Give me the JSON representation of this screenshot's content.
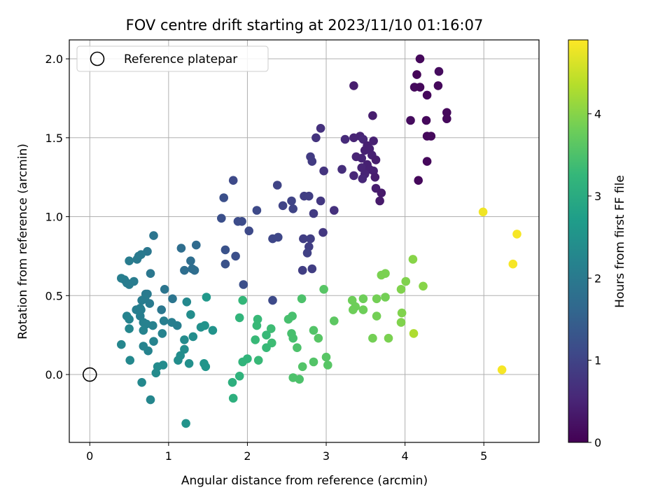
{
  "chart_data": {
    "type": "scatter",
    "title": "FOV centre drift starting at 2023/11/10 01:16:07",
    "xlabel": "Angular distance from reference (arcmin)",
    "ylabel": "Rotation from reference (arcmin)",
    "xlim": [
      -0.26,
      5.7
    ],
    "ylim": [
      -0.43,
      2.12
    ],
    "xticks": [
      0,
      1,
      2,
      3,
      4,
      5
    ],
    "yticks": [
      0.0,
      0.5,
      1.0,
      1.5,
      2.0
    ],
    "xtick_labels": [
      "0",
      "1",
      "2",
      "3",
      "4",
      "5"
    ],
    "ytick_labels": [
      "0.0",
      "0.5",
      "1.0",
      "1.5",
      "2.0"
    ],
    "grid": true,
    "legend": {
      "placement": "upper-left",
      "entries": [
        {
          "label": "Reference platepar",
          "marker": "open-circle"
        }
      ]
    },
    "reference_point": {
      "x": 0.0,
      "y": 0.0
    },
    "colorbar": {
      "label": "Hours from first FF file",
      "colormap": "viridis",
      "range": [
        0,
        4.9
      ],
      "ticks": [
        0,
        1,
        2,
        3,
        4
      ],
      "tick_labels": [
        "0",
        "1",
        "2",
        "3",
        "4"
      ]
    },
    "colormap_stops": [
      "#440154",
      "#482878",
      "#3e4989",
      "#31688e",
      "#26828e",
      "#1f9e89",
      "#35b779",
      "#6ece58",
      "#b5de2b",
      "#fde725"
    ],
    "points": [
      {
        "x": 4.19,
        "y": 2.0,
        "h": 0.1
      },
      {
        "x": 4.43,
        "y": 1.92,
        "h": 0.15
      },
      {
        "x": 4.15,
        "y": 1.9,
        "h": 0.05
      },
      {
        "x": 4.12,
        "y": 1.82,
        "h": 0.12
      },
      {
        "x": 4.42,
        "y": 1.83,
        "h": 0.1
      },
      {
        "x": 4.19,
        "y": 1.82,
        "h": 0.1
      },
      {
        "x": 4.28,
        "y": 1.77,
        "h": 0.1
      },
      {
        "x": 3.35,
        "y": 1.83,
        "h": 0.4
      },
      {
        "x": 4.53,
        "y": 1.66,
        "h": 0.1
      },
      {
        "x": 4.07,
        "y": 1.61,
        "h": 0.15
      },
      {
        "x": 4.27,
        "y": 1.61,
        "h": 0.1
      },
      {
        "x": 4.53,
        "y": 1.62,
        "h": 0.1
      },
      {
        "x": 3.59,
        "y": 1.64,
        "h": 0.4
      },
      {
        "x": 2.93,
        "y": 1.56,
        "h": 0.7
      },
      {
        "x": 4.28,
        "y": 1.51,
        "h": 0.1
      },
      {
        "x": 4.33,
        "y": 1.51,
        "h": 0.12
      },
      {
        "x": 4.28,
        "y": 1.35,
        "h": 0.1
      },
      {
        "x": 4.17,
        "y": 1.23,
        "h": 0.1
      },
      {
        "x": 2.87,
        "y": 1.5,
        "h": 0.75
      },
      {
        "x": 3.24,
        "y": 1.49,
        "h": 0.6
      },
      {
        "x": 3.35,
        "y": 1.5,
        "h": 0.5
      },
      {
        "x": 3.43,
        "y": 1.51,
        "h": 0.5
      },
      {
        "x": 3.47,
        "y": 1.49,
        "h": 0.55
      },
      {
        "x": 3.52,
        "y": 1.45,
        "h": 0.45
      },
      {
        "x": 3.6,
        "y": 1.48,
        "h": 0.45
      },
      {
        "x": 3.49,
        "y": 1.42,
        "h": 0.45
      },
      {
        "x": 3.55,
        "y": 1.43,
        "h": 0.45
      },
      {
        "x": 3.38,
        "y": 1.38,
        "h": 0.5
      },
      {
        "x": 3.45,
        "y": 1.37,
        "h": 0.5
      },
      {
        "x": 3.58,
        "y": 1.39,
        "h": 0.45
      },
      {
        "x": 3.63,
        "y": 1.36,
        "h": 0.4
      },
      {
        "x": 3.52,
        "y": 1.33,
        "h": 0.45
      },
      {
        "x": 3.45,
        "y": 1.31,
        "h": 0.5
      },
      {
        "x": 3.55,
        "y": 1.3,
        "h": 0.45
      },
      {
        "x": 3.49,
        "y": 1.27,
        "h": 0.5
      },
      {
        "x": 3.6,
        "y": 1.29,
        "h": 0.45
      },
      {
        "x": 3.35,
        "y": 1.26,
        "h": 0.55
      },
      {
        "x": 3.46,
        "y": 1.24,
        "h": 0.55
      },
      {
        "x": 3.62,
        "y": 1.25,
        "h": 0.4
      },
      {
        "x": 3.63,
        "y": 1.18,
        "h": 0.4
      },
      {
        "x": 3.7,
        "y": 1.15,
        "h": 0.35
      },
      {
        "x": 3.68,
        "y": 1.1,
        "h": 0.35
      },
      {
        "x": 3.2,
        "y": 1.3,
        "h": 0.65
      },
      {
        "x": 2.97,
        "y": 1.29,
        "h": 0.75
      },
      {
        "x": 2.8,
        "y": 1.38,
        "h": 0.85
      },
      {
        "x": 2.82,
        "y": 1.35,
        "h": 0.85
      },
      {
        "x": 1.82,
        "y": 1.23,
        "h": 1.1
      },
      {
        "x": 2.38,
        "y": 1.2,
        "h": 1.0
      },
      {
        "x": 1.7,
        "y": 1.12,
        "h": 1.2
      },
      {
        "x": 2.72,
        "y": 1.13,
        "h": 0.9
      },
      {
        "x": 2.78,
        "y": 1.13,
        "h": 0.9
      },
      {
        "x": 2.56,
        "y": 1.1,
        "h": 1.0
      },
      {
        "x": 2.93,
        "y": 1.1,
        "h": 0.8
      },
      {
        "x": 2.45,
        "y": 1.07,
        "h": 1.0
      },
      {
        "x": 2.58,
        "y": 1.05,
        "h": 1.0
      },
      {
        "x": 2.12,
        "y": 1.04,
        "h": 1.1
      },
      {
        "x": 2.84,
        "y": 1.02,
        "h": 0.85
      },
      {
        "x": 3.1,
        "y": 1.04,
        "h": 0.7
      },
      {
        "x": 1.67,
        "y": 0.99,
        "h": 1.2
      },
      {
        "x": 1.88,
        "y": 0.97,
        "h": 1.15
      },
      {
        "x": 1.93,
        "y": 0.97,
        "h": 1.15
      },
      {
        "x": 2.02,
        "y": 0.91,
        "h": 1.1
      },
      {
        "x": 2.96,
        "y": 0.9,
        "h": 0.8
      },
      {
        "x": 2.32,
        "y": 0.86,
        "h": 1.05
      },
      {
        "x": 2.39,
        "y": 0.87,
        "h": 1.05
      },
      {
        "x": 2.71,
        "y": 0.86,
        "h": 0.9
      },
      {
        "x": 2.8,
        "y": 0.86,
        "h": 0.9
      },
      {
        "x": 2.78,
        "y": 0.81,
        "h": 0.9
      },
      {
        "x": 2.76,
        "y": 0.77,
        "h": 0.95
      },
      {
        "x": 1.72,
        "y": 0.79,
        "h": 1.25
      },
      {
        "x": 1.85,
        "y": 0.75,
        "h": 1.2
      },
      {
        "x": 1.72,
        "y": 0.7,
        "h": 1.25
      },
      {
        "x": 2.7,
        "y": 0.66,
        "h": 0.9
      },
      {
        "x": 2.82,
        "y": 0.67,
        "h": 0.9
      },
      {
        "x": 1.95,
        "y": 0.57,
        "h": 1.2
      },
      {
        "x": 2.32,
        "y": 0.47,
        "h": 1.1
      },
      {
        "x": 0.81,
        "y": 0.88,
        "h": 1.9
      },
      {
        "x": 1.35,
        "y": 0.82,
        "h": 1.7
      },
      {
        "x": 1.16,
        "y": 0.8,
        "h": 1.75
      },
      {
        "x": 0.73,
        "y": 0.78,
        "h": 1.95
      },
      {
        "x": 0.62,
        "y": 0.75,
        "h": 2.0
      },
      {
        "x": 0.65,
        "y": 0.76,
        "h": 2.0
      },
      {
        "x": 0.5,
        "y": 0.72,
        "h": 2.05
      },
      {
        "x": 0.6,
        "y": 0.73,
        "h": 2.0
      },
      {
        "x": 1.28,
        "y": 0.72,
        "h": 1.75
      },
      {
        "x": 1.2,
        "y": 0.66,
        "h": 1.75
      },
      {
        "x": 1.3,
        "y": 0.67,
        "h": 1.75
      },
      {
        "x": 1.33,
        "y": 0.66,
        "h": 1.75
      },
      {
        "x": 0.77,
        "y": 0.64,
        "h": 1.95
      },
      {
        "x": 0.4,
        "y": 0.61,
        "h": 2.1
      },
      {
        "x": 0.44,
        "y": 0.6,
        "h": 2.1
      },
      {
        "x": 0.47,
        "y": 0.58,
        "h": 2.05
      },
      {
        "x": 0.56,
        "y": 0.59,
        "h": 2.05
      },
      {
        "x": 0.5,
        "y": 0.57,
        "h": 2.05
      },
      {
        "x": 0.71,
        "y": 0.51,
        "h": 2.0
      },
      {
        "x": 0.73,
        "y": 0.51,
        "h": 2.0
      },
      {
        "x": 0.95,
        "y": 0.54,
        "h": 1.9
      },
      {
        "x": 0.66,
        "y": 0.47,
        "h": 2.05
      },
      {
        "x": 0.7,
        "y": 0.48,
        "h": 2.05
      },
      {
        "x": 0.76,
        "y": 0.45,
        "h": 2.0
      },
      {
        "x": 1.05,
        "y": 0.48,
        "h": 1.9
      },
      {
        "x": 0.59,
        "y": 0.41,
        "h": 2.1
      },
      {
        "x": 0.64,
        "y": 0.42,
        "h": 2.1
      },
      {
        "x": 0.65,
        "y": 0.41,
        "h": 2.1
      },
      {
        "x": 0.91,
        "y": 0.41,
        "h": 1.95
      },
      {
        "x": 0.47,
        "y": 0.37,
        "h": 2.2
      },
      {
        "x": 0.5,
        "y": 0.35,
        "h": 2.2
      },
      {
        "x": 0.64,
        "y": 0.37,
        "h": 2.1
      },
      {
        "x": 0.68,
        "y": 0.33,
        "h": 2.15
      },
      {
        "x": 0.72,
        "y": 0.32,
        "h": 2.15
      },
      {
        "x": 0.8,
        "y": 0.31,
        "h": 2.15
      },
      {
        "x": 0.94,
        "y": 0.34,
        "h": 2.1
      },
      {
        "x": 1.04,
        "y": 0.33,
        "h": 2.1
      },
      {
        "x": 1.11,
        "y": 0.31,
        "h": 2.1
      },
      {
        "x": 0.5,
        "y": 0.29,
        "h": 2.25
      },
      {
        "x": 0.68,
        "y": 0.28,
        "h": 2.2
      },
      {
        "x": 0.92,
        "y": 0.26,
        "h": 2.2
      },
      {
        "x": 1.23,
        "y": 0.46,
        "h": 2.3
      },
      {
        "x": 1.28,
        "y": 0.38,
        "h": 2.4
      },
      {
        "x": 1.48,
        "y": 0.49,
        "h": 2.6
      },
      {
        "x": 1.41,
        "y": 0.3,
        "h": 2.45
      },
      {
        "x": 1.46,
        "y": 0.31,
        "h": 2.5
      },
      {
        "x": 1.56,
        "y": 0.28,
        "h": 2.5
      },
      {
        "x": 1.2,
        "y": 0.22,
        "h": 2.35
      },
      {
        "x": 1.31,
        "y": 0.24,
        "h": 2.4
      },
      {
        "x": 0.4,
        "y": 0.19,
        "h": 2.25
      },
      {
        "x": 0.68,
        "y": 0.18,
        "h": 2.2
      },
      {
        "x": 0.74,
        "y": 0.15,
        "h": 2.2
      },
      {
        "x": 0.81,
        "y": 0.21,
        "h": 2.2
      },
      {
        "x": 1.2,
        "y": 0.16,
        "h": 2.4
      },
      {
        "x": 1.15,
        "y": 0.12,
        "h": 2.4
      },
      {
        "x": 1.12,
        "y": 0.09,
        "h": 2.4
      },
      {
        "x": 0.51,
        "y": 0.09,
        "h": 2.3
      },
      {
        "x": 1.26,
        "y": 0.07,
        "h": 2.45
      },
      {
        "x": 1.45,
        "y": 0.07,
        "h": 2.55
      },
      {
        "x": 1.47,
        "y": 0.05,
        "h": 2.55
      },
      {
        "x": 0.86,
        "y": 0.05,
        "h": 2.35
      },
      {
        "x": 0.93,
        "y": 0.06,
        "h": 2.35
      },
      {
        "x": 0.84,
        "y": 0.01,
        "h": 2.35
      },
      {
        "x": 0.66,
        "y": -0.05,
        "h": 2.3
      },
      {
        "x": 0.77,
        "y": -0.16,
        "h": 2.25
      },
      {
        "x": 1.22,
        "y": -0.31,
        "h": 2.5
      },
      {
        "x": 1.94,
        "y": 0.47,
        "h": 3.25
      },
      {
        "x": 1.9,
        "y": 0.36,
        "h": 3.2
      },
      {
        "x": 2.13,
        "y": 0.35,
        "h": 3.3
      },
      {
        "x": 2.12,
        "y": 0.31,
        "h": 3.3
      },
      {
        "x": 2.3,
        "y": 0.29,
        "h": 3.35
      },
      {
        "x": 2.24,
        "y": 0.25,
        "h": 3.3
      },
      {
        "x": 2.31,
        "y": 0.2,
        "h": 3.35
      },
      {
        "x": 2.1,
        "y": 0.22,
        "h": 3.3
      },
      {
        "x": 2.24,
        "y": 0.17,
        "h": 3.3
      },
      {
        "x": 2.0,
        "y": 0.1,
        "h": 3.2
      },
      {
        "x": 1.94,
        "y": 0.08,
        "h": 3.2
      },
      {
        "x": 2.14,
        "y": 0.09,
        "h": 3.3
      },
      {
        "x": 1.81,
        "y": -0.05,
        "h": 3.1
      },
      {
        "x": 1.9,
        "y": -0.01,
        "h": 3.15
      },
      {
        "x": 1.82,
        "y": -0.15,
        "h": 3.1
      },
      {
        "x": 2.69,
        "y": 0.48,
        "h": 3.5
      },
      {
        "x": 2.52,
        "y": 0.35,
        "h": 3.45
      },
      {
        "x": 2.57,
        "y": 0.37,
        "h": 3.45
      },
      {
        "x": 2.56,
        "y": 0.26,
        "h": 3.45
      },
      {
        "x": 2.58,
        "y": 0.23,
        "h": 3.45
      },
      {
        "x": 2.63,
        "y": 0.17,
        "h": 3.5
      },
      {
        "x": 2.84,
        "y": 0.28,
        "h": 3.55
      },
      {
        "x": 2.9,
        "y": 0.23,
        "h": 3.6
      },
      {
        "x": 2.97,
        "y": 0.54,
        "h": 3.6
      },
      {
        "x": 3.1,
        "y": 0.34,
        "h": 3.65
      },
      {
        "x": 2.84,
        "y": 0.08,
        "h": 3.55
      },
      {
        "x": 2.7,
        "y": 0.05,
        "h": 3.55
      },
      {
        "x": 3.0,
        "y": 0.11,
        "h": 3.6
      },
      {
        "x": 3.02,
        "y": 0.06,
        "h": 3.6
      },
      {
        "x": 2.58,
        "y": -0.02,
        "h": 3.5
      },
      {
        "x": 2.66,
        "y": -0.03,
        "h": 3.5
      },
      {
        "x": 3.33,
        "y": 0.47,
        "h": 3.8
      },
      {
        "x": 3.47,
        "y": 0.48,
        "h": 3.8
      },
      {
        "x": 3.37,
        "y": 0.43,
        "h": 3.8
      },
      {
        "x": 3.34,
        "y": 0.41,
        "h": 3.8
      },
      {
        "x": 3.47,
        "y": 0.41,
        "h": 3.8
      },
      {
        "x": 3.64,
        "y": 0.48,
        "h": 3.85
      },
      {
        "x": 3.75,
        "y": 0.49,
        "h": 3.85
      },
      {
        "x": 3.7,
        "y": 0.63,
        "h": 3.9
      },
      {
        "x": 3.75,
        "y": 0.64,
        "h": 3.9
      },
      {
        "x": 3.64,
        "y": 0.37,
        "h": 3.85
      },
      {
        "x": 3.59,
        "y": 0.23,
        "h": 3.85
      },
      {
        "x": 3.79,
        "y": 0.23,
        "h": 3.9
      },
      {
        "x": 3.95,
        "y": 0.54,
        "h": 3.95
      },
      {
        "x": 4.01,
        "y": 0.59,
        "h": 3.95
      },
      {
        "x": 4.1,
        "y": 0.73,
        "h": 4.0
      },
      {
        "x": 3.96,
        "y": 0.39,
        "h": 3.95
      },
      {
        "x": 3.95,
        "y": 0.33,
        "h": 3.95
      },
      {
        "x": 4.23,
        "y": 0.56,
        "h": 4.0
      },
      {
        "x": 4.11,
        "y": 0.26,
        "h": 4.3
      },
      {
        "x": 4.99,
        "y": 1.03,
        "h": 4.8
      },
      {
        "x": 5.42,
        "y": 0.89,
        "h": 4.85
      },
      {
        "x": 5.37,
        "y": 0.7,
        "h": 4.85
      },
      {
        "x": 5.23,
        "y": 0.03,
        "h": 4.85
      }
    ]
  }
}
